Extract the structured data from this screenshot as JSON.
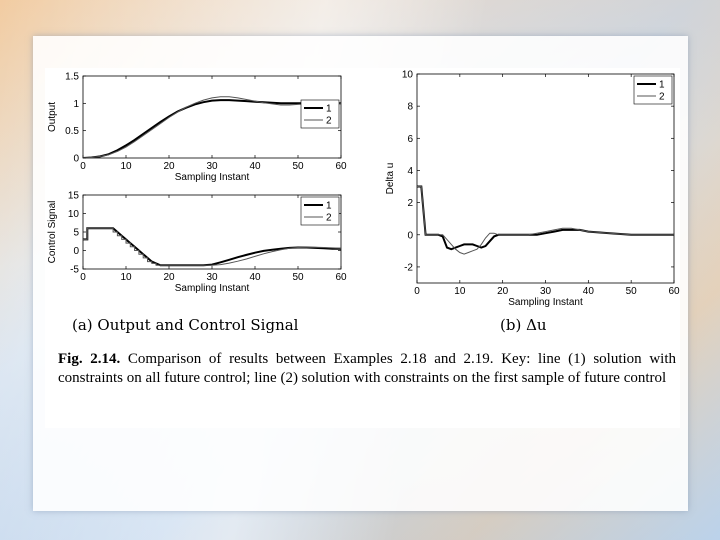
{
  "caption": {
    "label": "Fig. 2.14.",
    "text": "Comparison of results between Examples 2.18 and 2.19. Key: line (1) solution with constraints on all future control; line (2) solution with constraints on the first sample of future control"
  },
  "subcaptions": {
    "a": "(a) Output and Control Signal",
    "b": "(b) Δu"
  },
  "chart_data": [
    {
      "id": "output",
      "type": "line",
      "title": "",
      "xlabel": "Sampling Instant",
      "ylabel": "Output",
      "xlim": [
        0,
        60
      ],
      "ylim": [
        0,
        1.5
      ],
      "xticks": [
        0,
        10,
        20,
        30,
        40,
        50,
        60
      ],
      "yticks": [
        0,
        0.5,
        1,
        1.5
      ],
      "ytick_labels": [
        "0",
        "0.5",
        "1",
        "1.5"
      ],
      "legend": "top-right",
      "series": [
        {
          "name": "1",
          "x": [
            0,
            2,
            4,
            6,
            8,
            10,
            12,
            14,
            16,
            18,
            20,
            22,
            24,
            26,
            28,
            30,
            32,
            34,
            36,
            38,
            40,
            42,
            44,
            46,
            48,
            50,
            52,
            54,
            56,
            58,
            60
          ],
          "y": [
            0,
            0.01,
            0.03,
            0.07,
            0.14,
            0.23,
            0.33,
            0.44,
            0.55,
            0.66,
            0.76,
            0.85,
            0.92,
            0.98,
            1.02,
            1.05,
            1.06,
            1.06,
            1.05,
            1.04,
            1.03,
            1.02,
            1.01,
            1.0,
            1.0,
            1.0,
            1.0,
            1.0,
            1.0,
            1.0,
            1.0
          ]
        },
        {
          "name": "2",
          "x": [
            0,
            2,
            4,
            6,
            8,
            10,
            12,
            14,
            16,
            18,
            20,
            22,
            24,
            26,
            28,
            30,
            32,
            34,
            36,
            38,
            40,
            42,
            44,
            46,
            48,
            50,
            52,
            54,
            56,
            58,
            60
          ],
          "y": [
            0,
            0.01,
            0.03,
            0.06,
            0.12,
            0.2,
            0.3,
            0.41,
            0.52,
            0.63,
            0.74,
            0.84,
            0.93,
            1.0,
            1.06,
            1.1,
            1.12,
            1.12,
            1.1,
            1.07,
            1.04,
            1.01,
            0.99,
            0.97,
            0.97,
            0.98,
            0.99,
            1.0,
            1.01,
            1.0,
            1.0
          ]
        }
      ]
    },
    {
      "id": "control",
      "type": "line",
      "title": "",
      "xlabel": "Sampling Instant",
      "ylabel": "Control Signal",
      "xlim": [
        0,
        60
      ],
      "ylim": [
        -5,
        15
      ],
      "xticks": [
        0,
        10,
        20,
        30,
        40,
        50,
        60
      ],
      "yticks": [
        -5,
        0,
        5,
        10,
        15
      ],
      "ytick_labels": [
        "-5",
        "0",
        "5",
        "10",
        "15"
      ],
      "legend": "top-right",
      "series": [
        {
          "name": "1",
          "x": [
            0,
            1,
            1,
            7,
            8,
            9,
            10,
            11,
            12,
            13,
            14,
            15,
            16,
            17,
            18,
            20,
            22,
            24,
            26,
            28,
            30,
            32,
            34,
            36,
            38,
            40,
            42,
            44,
            46,
            48,
            50,
            52,
            54,
            56,
            58,
            60
          ],
          "y": [
            3,
            3,
            6,
            6,
            5,
            4,
            3,
            2,
            1,
            0,
            -1,
            -2,
            -3,
            -3.5,
            -4,
            -4,
            -4,
            -4,
            -4,
            -4,
            -3.8,
            -3.2,
            -2.5,
            -1.8,
            -1.2,
            -0.6,
            -0.1,
            0.2,
            0.5,
            0.7,
            0.8,
            0.8,
            0.7,
            0.6,
            0.5,
            0.5
          ]
        },
        {
          "name": "2",
          "x": [
            0,
            1,
            1,
            7,
            7,
            8,
            8,
            9,
            9,
            10,
            10,
            11,
            11,
            12,
            12,
            13,
            13,
            14,
            14,
            15,
            15,
            16,
            16,
            17,
            17,
            18,
            18,
            20,
            24,
            28,
            30,
            32,
            34,
            36,
            38,
            40,
            42,
            44,
            46,
            48,
            50,
            52,
            54,
            56,
            58,
            60
          ],
          "y": [
            3,
            3,
            6,
            6,
            5,
            5,
            4,
            4,
            3,
            3,
            2,
            2,
            1,
            1,
            0,
            0,
            -1,
            -1,
            -2,
            -2,
            -3,
            -3,
            -3.5,
            -3.5,
            -4,
            -4,
            -4,
            -4,
            -4,
            -4,
            -4,
            -3.8,
            -3.4,
            -2.9,
            -2.3,
            -1.6,
            -0.9,
            -0.3,
            0.2,
            0.6,
            0.8,
            0.9,
            0.9,
            0.8,
            0.7,
            0.6
          ]
        }
      ]
    },
    {
      "id": "delta-u",
      "type": "line",
      "title": "",
      "xlabel": "Sampling Instant",
      "ylabel": "Delta u",
      "xlim": [
        0,
        60
      ],
      "ylim": [
        -3,
        10
      ],
      "xticks": [
        0,
        10,
        20,
        30,
        40,
        50,
        60
      ],
      "yticks": [
        -2,
        0,
        2,
        4,
        6,
        8,
        10
      ],
      "ytick_labels": [
        "-2",
        "0",
        "2",
        "4",
        "6",
        "8",
        "10"
      ],
      "legend": "top-right",
      "series": [
        {
          "name": "1",
          "x": [
            0,
            1,
            2,
            3,
            4,
            5,
            6,
            7,
            8,
            9,
            10,
            11,
            12,
            13,
            14,
            15,
            16,
            17,
            18,
            19,
            20,
            22,
            24,
            26,
            28,
            30,
            32,
            34,
            36,
            38,
            40,
            45,
            50,
            55,
            60
          ],
          "y": [
            3,
            3,
            0,
            0,
            0,
            0,
            -0.1,
            -0.8,
            -0.9,
            -0.8,
            -0.7,
            -0.6,
            -0.6,
            -0.6,
            -0.7,
            -0.8,
            -0.7,
            -0.4,
            -0.1,
            0,
            0,
            0,
            0,
            0,
            0,
            0.1,
            0.2,
            0.3,
            0.3,
            0.3,
            0.2,
            0.1,
            0,
            0,
            0
          ]
        },
        {
          "name": "2",
          "x": [
            0,
            1,
            2,
            3,
            4,
            5,
            6,
            7,
            8,
            9,
            10,
            11,
            12,
            13,
            14,
            15,
            16,
            17,
            18,
            19,
            20,
            22,
            24,
            26,
            28,
            30,
            32,
            34,
            36,
            38,
            40,
            45,
            50,
            55,
            60
          ],
          "y": [
            3,
            3,
            0,
            0,
            0,
            0,
            0,
            -0.3,
            -0.6,
            -0.9,
            -1.1,
            -1.2,
            -1.1,
            -1.0,
            -0.9,
            -0.6,
            -0.2,
            0.1,
            0.1,
            0,
            0,
            0,
            0,
            0,
            0.1,
            0.2,
            0.3,
            0.4,
            0.4,
            0.3,
            0.2,
            0.1,
            0,
            0,
            0
          ]
        }
      ]
    }
  ]
}
